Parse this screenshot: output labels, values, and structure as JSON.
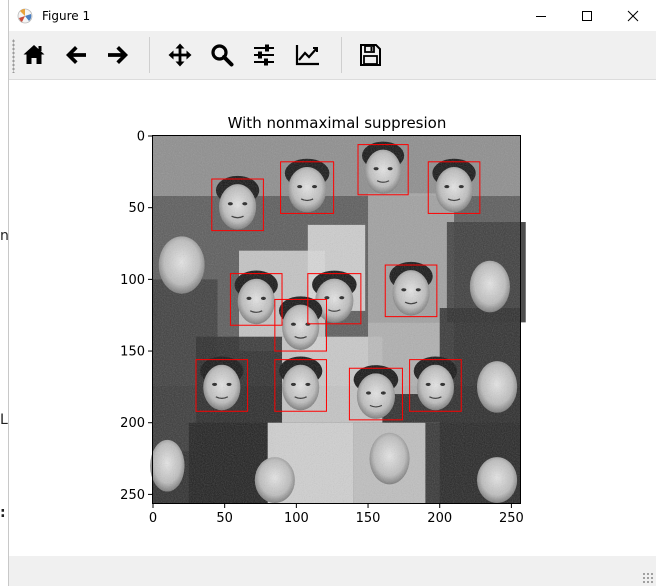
{
  "window": {
    "title": "Figure 1",
    "controls": [
      "minimize",
      "maximize",
      "close"
    ]
  },
  "toolbar": {
    "buttons": [
      {
        "name": "home-button",
        "icon": "home-icon"
      },
      {
        "name": "back-button",
        "icon": "arrow-left-icon"
      },
      {
        "name": "forward-button",
        "icon": "arrow-right-icon"
      },
      {
        "name": "pan-button",
        "icon": "move-icon"
      },
      {
        "name": "zoom-button",
        "icon": "search-icon"
      },
      {
        "name": "subplots-button",
        "icon": "sliders-icon"
      },
      {
        "name": "edit-axes-button",
        "icon": "line-chart-icon"
      },
      {
        "name": "save-button",
        "icon": "floppy-icon"
      }
    ]
  },
  "figure": {
    "title": "With nonmaximal suppresion",
    "xlim": [
      0,
      256
    ],
    "ylim": [
      256,
      0
    ],
    "xticks": [
      "0",
      "50",
      "100",
      "150",
      "200",
      "250"
    ],
    "yticks": [
      "0",
      "50",
      "100",
      "150",
      "200",
      "250"
    ],
    "xtick_values": [
      0,
      50,
      100,
      150,
      200,
      250
    ],
    "ytick_values": [
      0,
      50,
      100,
      150,
      200,
      250
    ],
    "box_color": "#ff0000",
    "detections": [
      {
        "x": 143,
        "y": 6,
        "w": 35,
        "h": 35
      },
      {
        "x": 89,
        "y": 18,
        "w": 37,
        "h": 36
      },
      {
        "x": 192,
        "y": 18,
        "w": 36,
        "h": 36
      },
      {
        "x": 41,
        "y": 30,
        "w": 36,
        "h": 36
      },
      {
        "x": 162,
        "y": 90,
        "w": 36,
        "h": 36
      },
      {
        "x": 108,
        "y": 96,
        "w": 37,
        "h": 35
      },
      {
        "x": 54,
        "y": 96,
        "w": 36,
        "h": 36
      },
      {
        "x": 85,
        "y": 114,
        "w": 36,
        "h": 36
      },
      {
        "x": 30,
        "y": 156,
        "w": 36,
        "h": 36
      },
      {
        "x": 85,
        "y": 156,
        "w": 36,
        "h": 36
      },
      {
        "x": 179,
        "y": 156,
        "w": 36,
        "h": 36
      },
      {
        "x": 137,
        "y": 162,
        "w": 37,
        "h": 36
      }
    ]
  },
  "background_text": [
    "n",
    "L",
    ":"
  ]
}
